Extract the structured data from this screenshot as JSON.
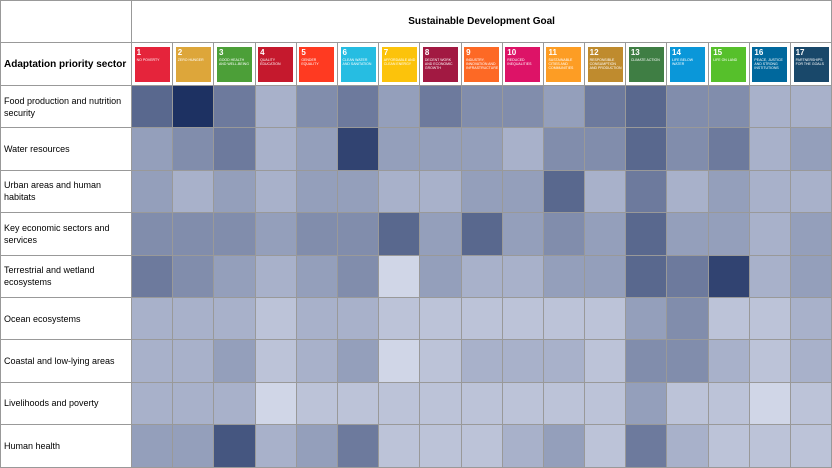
{
  "header": {
    "title": "Sustainable Development Goal",
    "corner": "Adaptation priority sector"
  },
  "scale": {
    "range": [
      0,
      10
    ],
    "colors": [
      "#e4e8f6",
      "#1d3162"
    ]
  },
  "goals": [
    {
      "number": "1",
      "label": "NO POVERTY",
      "color": "#e5243b"
    },
    {
      "number": "2",
      "label": "ZERO HUNGER",
      "color": "#dda63a"
    },
    {
      "number": "3",
      "label": "GOOD HEALTH AND WELL-BEING",
      "color": "#4c9f38"
    },
    {
      "number": "4",
      "label": "QUALITY EDUCATION",
      "color": "#c5192d"
    },
    {
      "number": "5",
      "label": "GENDER EQUALITY",
      "color": "#ff3a21"
    },
    {
      "number": "6",
      "label": "CLEAN WATER AND SANITATION",
      "color": "#26bde2"
    },
    {
      "number": "7",
      "label": "AFFORDABLE AND CLEAN ENERGY",
      "color": "#fcc30b"
    },
    {
      "number": "8",
      "label": "DECENT WORK AND ECONOMIC GROWTH",
      "color": "#a21942"
    },
    {
      "number": "9",
      "label": "INDUSTRY, INNOVATION AND INFRASTRUCTURE",
      "color": "#fd6925"
    },
    {
      "number": "10",
      "label": "REDUCED INEQUALITIES",
      "color": "#dd1367"
    },
    {
      "number": "11",
      "label": "SUSTAINABLE CITIES AND COMMUNITIES",
      "color": "#fd9d24"
    },
    {
      "number": "12",
      "label": "RESPONSIBLE CONSUMPTION AND PRODUCTION",
      "color": "#bf8b2e"
    },
    {
      "number": "13",
      "label": "CLIMATE ACTION",
      "color": "#3f7e44"
    },
    {
      "number": "14",
      "label": "LIFE BELOW WATER",
      "color": "#0a97d9"
    },
    {
      "number": "15",
      "label": "LIFE ON LAND",
      "color": "#56c02b"
    },
    {
      "number": "16",
      "label": "PEACE, JUSTICE AND STRONG INSTITUTIONS",
      "color": "#00689d"
    },
    {
      "number": "17",
      "label": "PARTNERSHIPS FOR THE GOALS",
      "color": "#19486a"
    }
  ],
  "rows": [
    {
      "sector": "Food production and nutrition security",
      "values": [
        7,
        10,
        6,
        3,
        5,
        6,
        4,
        6,
        5,
        5,
        4,
        6,
        7,
        5,
        5,
        3,
        3
      ]
    },
    {
      "sector": "Water resources",
      "values": [
        4,
        5,
        6,
        3,
        4,
        9,
        4,
        4,
        4,
        3,
        5,
        5,
        7,
        5,
        6,
        3,
        4
      ]
    },
    {
      "sector": "Urban areas and human habitats",
      "values": [
        4,
        3,
        4,
        3,
        4,
        4,
        3,
        3,
        4,
        4,
        7,
        3,
        6,
        3,
        4,
        3,
        3
      ]
    },
    {
      "sector": "Key economic sectors and services",
      "values": [
        5,
        5,
        5,
        4,
        5,
        5,
        7,
        4,
        7,
        4,
        5,
        4,
        7,
        4,
        4,
        3,
        4
      ]
    },
    {
      "sector": "Terrestrial and wetland ecosystems",
      "values": [
        6,
        5,
        4,
        3,
        4,
        5,
        1,
        4,
        3,
        3,
        4,
        4,
        7,
        6,
        9,
        3,
        4
      ]
    },
    {
      "sector": "Ocean ecosystems",
      "values": [
        3,
        3,
        3,
        2,
        3,
        3,
        2,
        2,
        2,
        2,
        2,
        2,
        4,
        5,
        2,
        2,
        3
      ]
    },
    {
      "sector": "Coastal and low-lying areas",
      "values": [
        3,
        3,
        4,
        2,
        3,
        4,
        1,
        2,
        3,
        3,
        3,
        2,
        5,
        5,
        3,
        2,
        3
      ]
    },
    {
      "sector": "Livelihoods and poverty",
      "values": [
        3,
        3,
        3,
        1,
        2,
        2,
        2,
        2,
        2,
        2,
        2,
        2,
        4,
        2,
        2,
        1,
        2
      ]
    },
    {
      "sector": "Human health",
      "values": [
        4,
        4,
        8,
        3,
        4,
        6,
        2,
        2,
        2,
        3,
        4,
        2,
        6,
        3,
        2,
        2,
        2
      ]
    }
  ]
}
